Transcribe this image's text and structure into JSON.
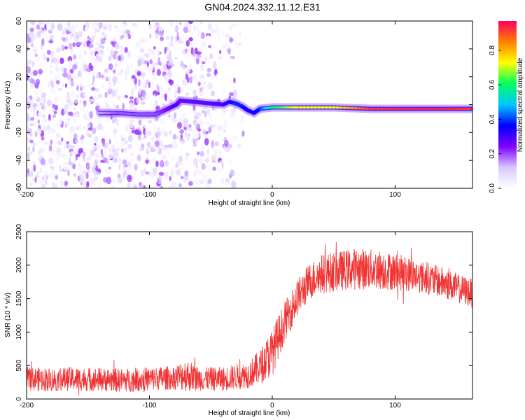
{
  "title": "GN04.2024.332.11.12.E31",
  "chart_data": [
    {
      "type": "heatmap",
      "xlabel": "Height of straight line (km)",
      "ylabel": "Frequency (Hz)",
      "xlim": [
        -200,
        163
      ],
      "ylim": [
        -60,
        60
      ],
      "xticks": [
        "-200",
        "-100",
        "0",
        "100"
      ],
      "xtick_values": [
        -200,
        -100,
        0,
        100
      ],
      "yticks": [
        "60",
        "40",
        "20",
        "0",
        "-20",
        "-40",
        "-60"
      ],
      "ytick_values": [
        60,
        40,
        20,
        0,
        -20,
        -40,
        -60
      ],
      "colorbar": {
        "label": "Normalized spectral amplitude",
        "range": [
          0,
          0.97
        ],
        "ticks": [
          "0.0",
          "0.2",
          "0.4",
          "0.6",
          "0.8"
        ],
        "tick_values": [
          0,
          0.2,
          0.4,
          0.6,
          0.8
        ],
        "colors": [
          "#ffffff",
          "#d8c8ff",
          "#8000ff",
          "#0000ff",
          "#00c8ff",
          "#00ff60",
          "#ffff00",
          "#ff8000",
          "#ff0060"
        ]
      },
      "noise_region_x": [
        -200,
        -20
      ],
      "trace": {
        "x": [
          -140,
          -125,
          -110,
          -95,
          -85,
          -78,
          -75,
          -40,
          -35,
          -30,
          -25,
          -20,
          -15,
          -10,
          0,
          20,
          50,
          80,
          110,
          140,
          163
        ],
        "y": [
          -6,
          -6,
          -7,
          -7,
          -3,
          0,
          3,
          0,
          2,
          1,
          -1,
          -4,
          -6,
          -3,
          -2,
          -2,
          -2,
          -3,
          -3,
          -3,
          -3
        ],
        "amplitude": [
          0.15,
          0.2,
          0.2,
          0.2,
          0.25,
          0.3,
          0.25,
          0.3,
          0.35,
          0.4,
          0.4,
          0.35,
          0.35,
          0.4,
          0.6,
          0.75,
          0.75,
          0.95,
          0.97,
          0.97,
          0.95
        ]
      }
    },
    {
      "type": "line",
      "xlabel": "Height of straight line (km)",
      "ylabel": "SNR (10 * v/v)",
      "xlim": [
        -200,
        163
      ],
      "ylim": [
        0,
        2500
      ],
      "xticks": [
        "-200",
        "-100",
        "0",
        "100"
      ],
      "xtick_values": [
        -200,
        -100,
        0,
        100
      ],
      "yticks": [
        "2500",
        "2000",
        "1500",
        "1000",
        "500",
        "0"
      ],
      "ytick_values": [
        2500,
        2000,
        1500,
        1000,
        500,
        0
      ],
      "color": "#f03232",
      "series": [
        {
          "x": [
            -200,
            -180,
            -160,
            -140,
            -120,
            -100,
            -80,
            -70,
            -60,
            -40,
            -20,
            -10,
            0,
            10,
            20,
            30,
            40,
            50,
            60,
            70,
            80,
            90,
            100,
            110,
            120,
            130,
            140,
            150,
            163
          ],
          "y": [
            300,
            290,
            300,
            290,
            280,
            300,
            320,
            360,
            300,
            300,
            360,
            480,
            700,
            1150,
            1500,
            1750,
            1870,
            1900,
            1930,
            1950,
            1940,
            1930,
            1900,
            1870,
            1830,
            1780,
            1730,
            1660,
            1580
          ],
          "spread": [
            180,
            180,
            180,
            180,
            180,
            180,
            180,
            250,
            180,
            180,
            200,
            260,
            360,
            300,
            280,
            280,
            300,
            300,
            300,
            320,
            300,
            300,
            280,
            260,
            240,
            240,
            240,
            220,
            220
          ]
        }
      ]
    }
  ]
}
